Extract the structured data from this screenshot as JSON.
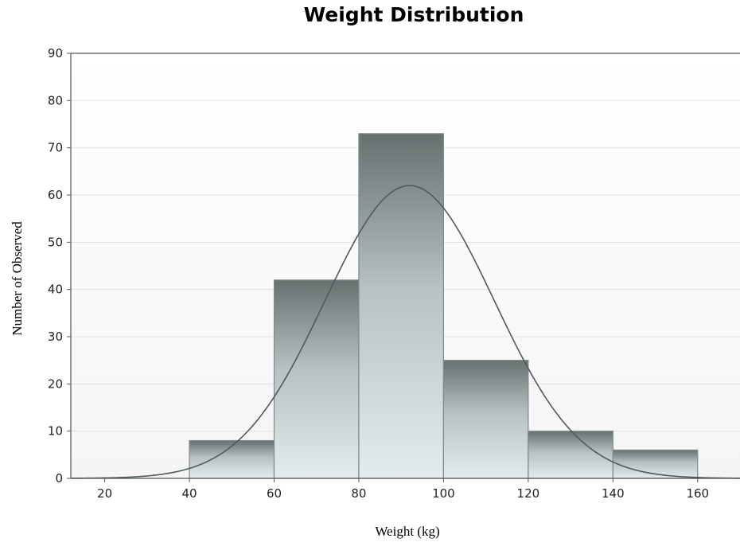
{
  "chart_data": {
    "type": "bar",
    "title": "Weight Distribution",
    "xlabel": "Weight (kg)",
    "ylabel": "Number of Observed",
    "bins": [
      [
        40,
        60
      ],
      [
        60,
        80
      ],
      [
        80,
        100
      ],
      [
        100,
        120
      ],
      [
        120,
        140
      ],
      [
        140,
        160
      ]
    ],
    "values": [
      8,
      42,
      73,
      25,
      10,
      6
    ],
    "xlim": [
      12,
      170
    ],
    "ylim": [
      0,
      90
    ],
    "xticks": [
      20,
      40,
      60,
      80,
      100,
      120,
      140,
      160
    ],
    "yticks": [
      0,
      10,
      20,
      30,
      40,
      50,
      60,
      70,
      80,
      90
    ],
    "grid": true,
    "curve": {
      "type": "normal",
      "mean": 92,
      "peak": 62,
      "sd": 20
    }
  }
}
